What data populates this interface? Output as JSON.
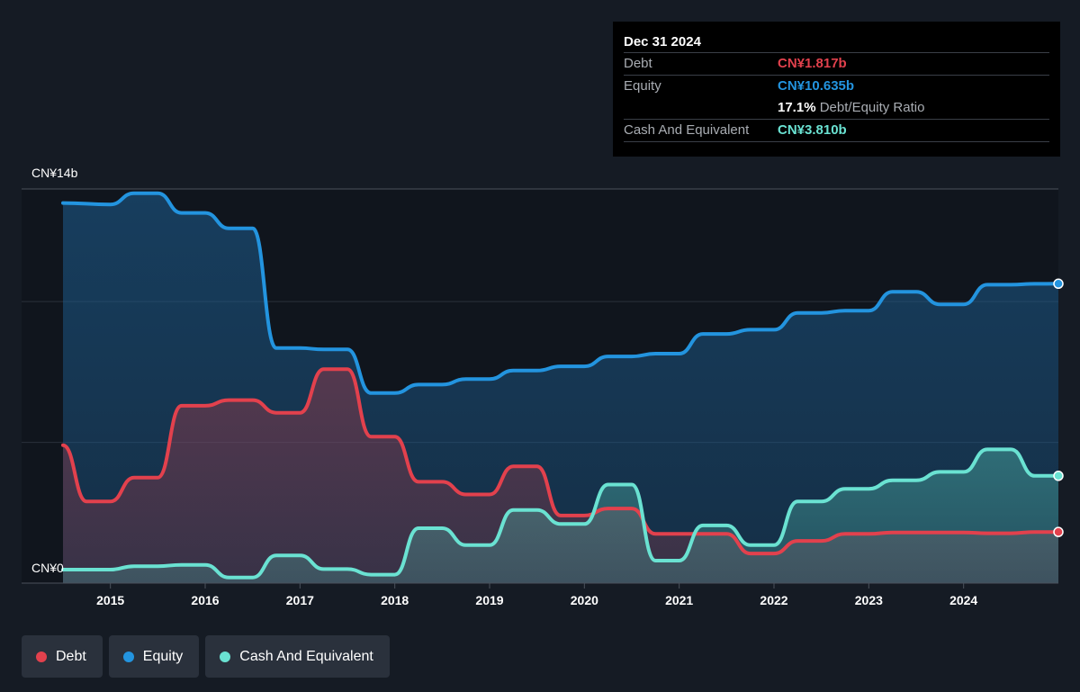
{
  "tooltip": {
    "date": "Dec 31 2024",
    "debt_label": "Debt",
    "debt_value": "CN¥1.817b",
    "equity_label": "Equity",
    "equity_value": "CN¥10.635b",
    "ratio_value": "17.1%",
    "ratio_label": "Debt/Equity Ratio",
    "cash_label": "Cash And Equivalent",
    "cash_value": "CN¥3.810b"
  },
  "legend": {
    "debt": "Debt",
    "equity": "Equity",
    "cash": "Cash And Equivalent"
  },
  "colors": {
    "background": "#151b24",
    "debt": "#e2414d",
    "equity": "#2394df",
    "cash": "#6ae2d2"
  },
  "chart_data": {
    "type": "area",
    "y_axis_labels": {
      "top": "CN¥14b",
      "bottom": "CN¥0"
    },
    "ylim": [
      0,
      14
    ],
    "xlim": [
      2014.5,
      2025.0
    ],
    "x_ticks": [
      2015,
      2016,
      2017,
      2018,
      2019,
      2020,
      2021,
      2022,
      2023,
      2024
    ],
    "x_tick_labels": [
      "2015",
      "2016",
      "2017",
      "2018",
      "2019",
      "2020",
      "2021",
      "2022",
      "2023",
      "2024"
    ],
    "series": [
      {
        "name": "Equity",
        "color": "#2394df",
        "points": [
          [
            2014.5,
            13.5
          ],
          [
            2015.0,
            13.45
          ],
          [
            2015.25,
            13.85
          ],
          [
            2015.5,
            13.85
          ],
          [
            2015.75,
            13.15
          ],
          [
            2016.0,
            13.15
          ],
          [
            2016.25,
            12.6
          ],
          [
            2016.5,
            12.6
          ],
          [
            2016.75,
            8.35
          ],
          [
            2017.0,
            8.35
          ],
          [
            2017.25,
            8.3
          ],
          [
            2017.5,
            8.3
          ],
          [
            2017.75,
            6.75
          ],
          [
            2018.0,
            6.75
          ],
          [
            2018.25,
            7.05
          ],
          [
            2018.5,
            7.05
          ],
          [
            2018.75,
            7.25
          ],
          [
            2019.0,
            7.25
          ],
          [
            2019.25,
            7.55
          ],
          [
            2019.5,
            7.55
          ],
          [
            2019.75,
            7.7
          ],
          [
            2020.0,
            7.7
          ],
          [
            2020.25,
            8.05
          ],
          [
            2020.5,
            8.05
          ],
          [
            2020.75,
            8.15
          ],
          [
            2021.0,
            8.15
          ],
          [
            2021.25,
            8.85
          ],
          [
            2021.5,
            8.85
          ],
          [
            2021.75,
            9.0
          ],
          [
            2022.0,
            9.0
          ],
          [
            2022.25,
            9.6
          ],
          [
            2022.5,
            9.6
          ],
          [
            2022.75,
            9.68
          ],
          [
            2023.0,
            9.68
          ],
          [
            2023.25,
            10.35
          ],
          [
            2023.5,
            10.35
          ],
          [
            2023.75,
            9.9
          ],
          [
            2024.0,
            9.9
          ],
          [
            2024.25,
            10.6
          ],
          [
            2024.5,
            10.6
          ],
          [
            2024.75,
            10.63
          ],
          [
            2025.0,
            10.635
          ]
        ]
      },
      {
        "name": "Debt",
        "color": "#e2414d",
        "points": [
          [
            2014.5,
            4.9
          ],
          [
            2014.75,
            2.9
          ],
          [
            2015.0,
            2.9
          ],
          [
            2015.25,
            3.75
          ],
          [
            2015.5,
            3.75
          ],
          [
            2015.75,
            6.3
          ],
          [
            2016.0,
            6.3
          ],
          [
            2016.25,
            6.5
          ],
          [
            2016.5,
            6.5
          ],
          [
            2016.75,
            6.05
          ],
          [
            2017.0,
            6.05
          ],
          [
            2017.25,
            7.6
          ],
          [
            2017.5,
            7.6
          ],
          [
            2017.75,
            5.2
          ],
          [
            2018.0,
            5.2
          ],
          [
            2018.25,
            3.6
          ],
          [
            2018.5,
            3.6
          ],
          [
            2018.75,
            3.15
          ],
          [
            2019.0,
            3.15
          ],
          [
            2019.25,
            4.15
          ],
          [
            2019.5,
            4.15
          ],
          [
            2019.75,
            2.4
          ],
          [
            2020.0,
            2.4
          ],
          [
            2020.25,
            2.65
          ],
          [
            2020.5,
            2.65
          ],
          [
            2020.75,
            1.75
          ],
          [
            2021.0,
            1.75
          ],
          [
            2021.25,
            1.75
          ],
          [
            2021.5,
            1.75
          ],
          [
            2021.75,
            1.05
          ],
          [
            2022.0,
            1.05
          ],
          [
            2022.25,
            1.5
          ],
          [
            2022.5,
            1.5
          ],
          [
            2022.75,
            1.75
          ],
          [
            2023.0,
            1.75
          ],
          [
            2023.25,
            1.8
          ],
          [
            2023.5,
            1.8
          ],
          [
            2023.75,
            1.8
          ],
          [
            2024.0,
            1.8
          ],
          [
            2024.25,
            1.77
          ],
          [
            2024.5,
            1.77
          ],
          [
            2024.75,
            1.817
          ],
          [
            2025.0,
            1.817
          ]
        ]
      },
      {
        "name": "Cash And Equivalent",
        "color": "#6ae2d2",
        "points": [
          [
            2014.5,
            0.48
          ],
          [
            2015.0,
            0.48
          ],
          [
            2015.25,
            0.6
          ],
          [
            2015.5,
            0.6
          ],
          [
            2015.75,
            0.65
          ],
          [
            2016.0,
            0.65
          ],
          [
            2016.25,
            0.2
          ],
          [
            2016.5,
            0.2
          ],
          [
            2016.75,
            0.98
          ],
          [
            2017.0,
            0.98
          ],
          [
            2017.25,
            0.5
          ],
          [
            2017.5,
            0.5
          ],
          [
            2017.75,
            0.3
          ],
          [
            2018.0,
            0.3
          ],
          [
            2018.25,
            1.95
          ],
          [
            2018.5,
            1.95
          ],
          [
            2018.75,
            1.35
          ],
          [
            2019.0,
            1.35
          ],
          [
            2019.25,
            2.6
          ],
          [
            2019.5,
            2.6
          ],
          [
            2019.75,
            2.1
          ],
          [
            2020.0,
            2.1
          ],
          [
            2020.25,
            3.5
          ],
          [
            2020.5,
            3.5
          ],
          [
            2020.75,
            0.8
          ],
          [
            2021.0,
            0.8
          ],
          [
            2021.25,
            2.05
          ],
          [
            2021.5,
            2.05
          ],
          [
            2021.75,
            1.35
          ],
          [
            2022.0,
            1.35
          ],
          [
            2022.25,
            2.9
          ],
          [
            2022.5,
            2.9
          ],
          [
            2022.75,
            3.35
          ],
          [
            2023.0,
            3.35
          ],
          [
            2023.25,
            3.65
          ],
          [
            2023.5,
            3.65
          ],
          [
            2023.75,
            3.95
          ],
          [
            2024.0,
            3.95
          ],
          [
            2024.25,
            4.75
          ],
          [
            2024.5,
            4.75
          ],
          [
            2024.75,
            3.81
          ],
          [
            2025.0,
            3.81
          ]
        ]
      }
    ]
  }
}
